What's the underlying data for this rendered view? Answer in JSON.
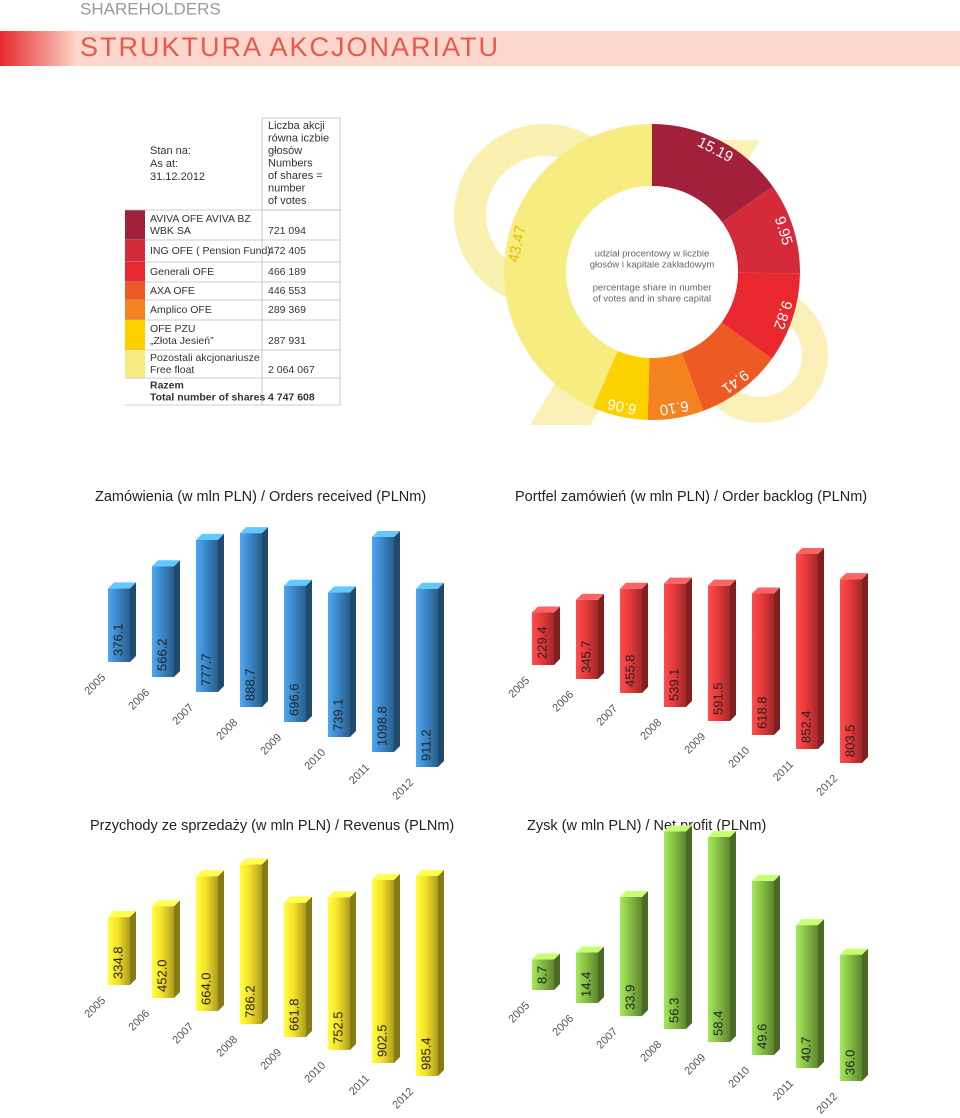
{
  "header": {
    "kicker": "SHAREHOLDERS",
    "title": "STRUKTURA AKCJONARIATU"
  },
  "table": {
    "head": [
      [
        "Stan na:",
        "As at:",
        "31.12.2012"
      ],
      [
        "Liczba akcji",
        "równa iczbie",
        "głosów",
        "Numbers",
        "of shares =",
        "number",
        "of votes"
      ]
    ],
    "rows": [
      {
        "name": [
          "AVIVA OFE AVIVA BZ",
          "WBK SA"
        ],
        "value": "721 094",
        "color": "#a3203a"
      },
      {
        "name": [
          "ING OFE ( Pension Fund)"
        ],
        "value": "472 405",
        "color": "#d42a3a"
      },
      {
        "name": [
          "Generali OFE"
        ],
        "value": "466 189",
        "color": "#e8282e"
      },
      {
        "name": [
          "AXA OFE"
        ],
        "value": "446 553",
        "color": "#ee5a24"
      },
      {
        "name": [
          "Amplico OFE"
        ],
        "value": "289 369",
        "color": "#f58220"
      },
      {
        "name": [
          "OFE PZU",
          "„Złota Jesień”"
        ],
        "value": "287 931",
        "color": "#fdd100"
      },
      {
        "name": [
          "Pozostali akcjonariusze",
          "Free float"
        ],
        "value": "2 064 067",
        "color": "#f7ec80"
      },
      {
        "name": [
          "Razem",
          "Total number of shares"
        ],
        "value": "4 747 608",
        "color": null
      }
    ]
  },
  "chart_data": [
    {
      "type": "donut",
      "center_text": [
        [
          "udział procentowy w liczbie",
          "głosów i kapitale zakładowym"
        ],
        [
          "percentage share in number",
          "of votes and in share capital"
        ]
      ],
      "values": [
        15.19,
        9.95,
        9.82,
        9.41,
        6.1,
        6.06,
        43.47
      ],
      "value_labels": [
        "15.19",
        "9.95",
        "9.82",
        "9.41",
        "6.10",
        "6.06",
        "43.47"
      ],
      "colors": [
        "#a3203a",
        "#d42a3a",
        "#e8282e",
        "#ee5a24",
        "#f58220",
        "#fdd100",
        "#f7ec80"
      ]
    },
    {
      "type": "bar3d",
      "title": "Zamówienia (w mln PLN) / Orders received (PLNm)",
      "color": "#3a87c8",
      "categories": [
        "2005",
        "2006",
        "2007",
        "2008",
        "2009",
        "2010",
        "2011",
        "2012"
      ],
      "values": [
        376.1,
        566.2,
        777.7,
        888.7,
        696.6,
        739.1,
        1098.8,
        911.2
      ]
    },
    {
      "type": "bar3d",
      "title": "Portfel zamówień (w mln PLN) / Order backlog (PLNm)",
      "color": "#e6393a",
      "categories": [
        "2005",
        "2006",
        "2007",
        "2008",
        "2009",
        "2010",
        "2011",
        "2012"
      ],
      "values": [
        229.4,
        345.7,
        455.8,
        539.1,
        591.5,
        618.8,
        852.4,
        803.5
      ]
    },
    {
      "type": "bar3d",
      "title": "Przychody ze sprzedaży (w mln PLN) / Revenus (PLNm)",
      "color": "#f6e02a",
      "categories": [
        "2005",
        "2006",
        "2007",
        "2008",
        "2009",
        "2010",
        "2011",
        "2012"
      ],
      "values": [
        334.8,
        452.0,
        664.0,
        786.2,
        661.8,
        752.5,
        902.5,
        985.4
      ],
      "value_labels": [
        "334.8",
        "452.0",
        "664.0",
        "786.2",
        "661.8",
        "752.5",
        "902.5",
        "985.4"
      ]
    },
    {
      "type": "bar3d",
      "title": "Zysk (w mln PLN) / Net profit (PLNm)",
      "color": "#86c044",
      "categories": [
        "2005",
        "2006",
        "2007",
        "2008",
        "2009",
        "2010",
        "2011",
        "2012"
      ],
      "values": [
        8.7,
        14.4,
        33.9,
        56.3,
        58.4,
        49.6,
        40.7,
        36.0
      ],
      "value_labels": [
        "8.7",
        "14.4",
        "33.9",
        "56.3",
        "58.4",
        "49.6",
        "40.7",
        "36.0"
      ]
    }
  ]
}
